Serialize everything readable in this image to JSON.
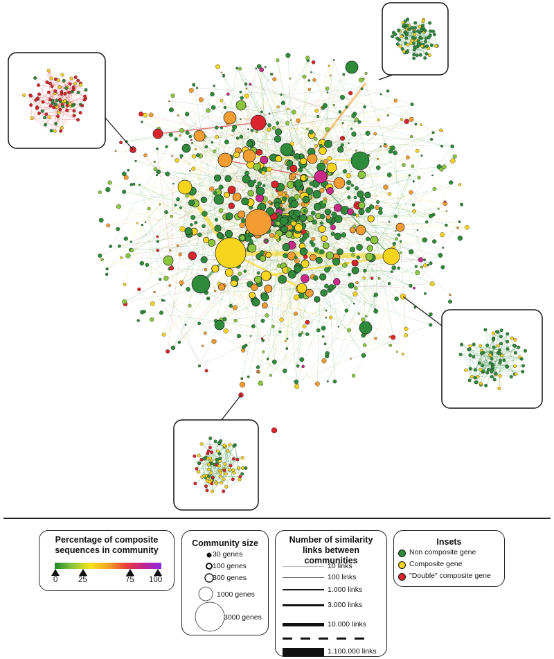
{
  "legend": {
    "percentage": {
      "title": "Percentage of composite sequences in community",
      "ticks": [
        "0",
        "25",
        "75",
        "100"
      ],
      "gradient": [
        "#1e8a2e",
        "#8cc63e",
        "#f7e319",
        "#f5a623",
        "#e8403a",
        "#c2238f",
        "#8a2be2"
      ]
    },
    "community_size": {
      "title": "Community size",
      "items": [
        "30 genes",
        "100 genes",
        "300 genes",
        "1000 genes",
        "3000 genes"
      ]
    },
    "links": {
      "title": "Number of similarity links between communities",
      "items": [
        "10 links",
        "100 links",
        "1.000 links",
        "3.000 links",
        "10.000 links",
        "1.100.000 links"
      ]
    },
    "insets": {
      "title": "Insets",
      "items": [
        {
          "label": "Non composite gene",
          "color": "#2e8b3a"
        },
        {
          "label": "Composite gene",
          "color": "#f2d21b"
        },
        {
          "label": "\"Double\" composite gene",
          "color": "#d9252b"
        }
      ]
    }
  },
  "colors": {
    "green": "#2e8b3a",
    "lightgreen": "#8cc63e",
    "yellow": "#f7d51d",
    "orange": "#f39c32",
    "red": "#d9252b",
    "magenta": "#cc2a8a"
  }
}
